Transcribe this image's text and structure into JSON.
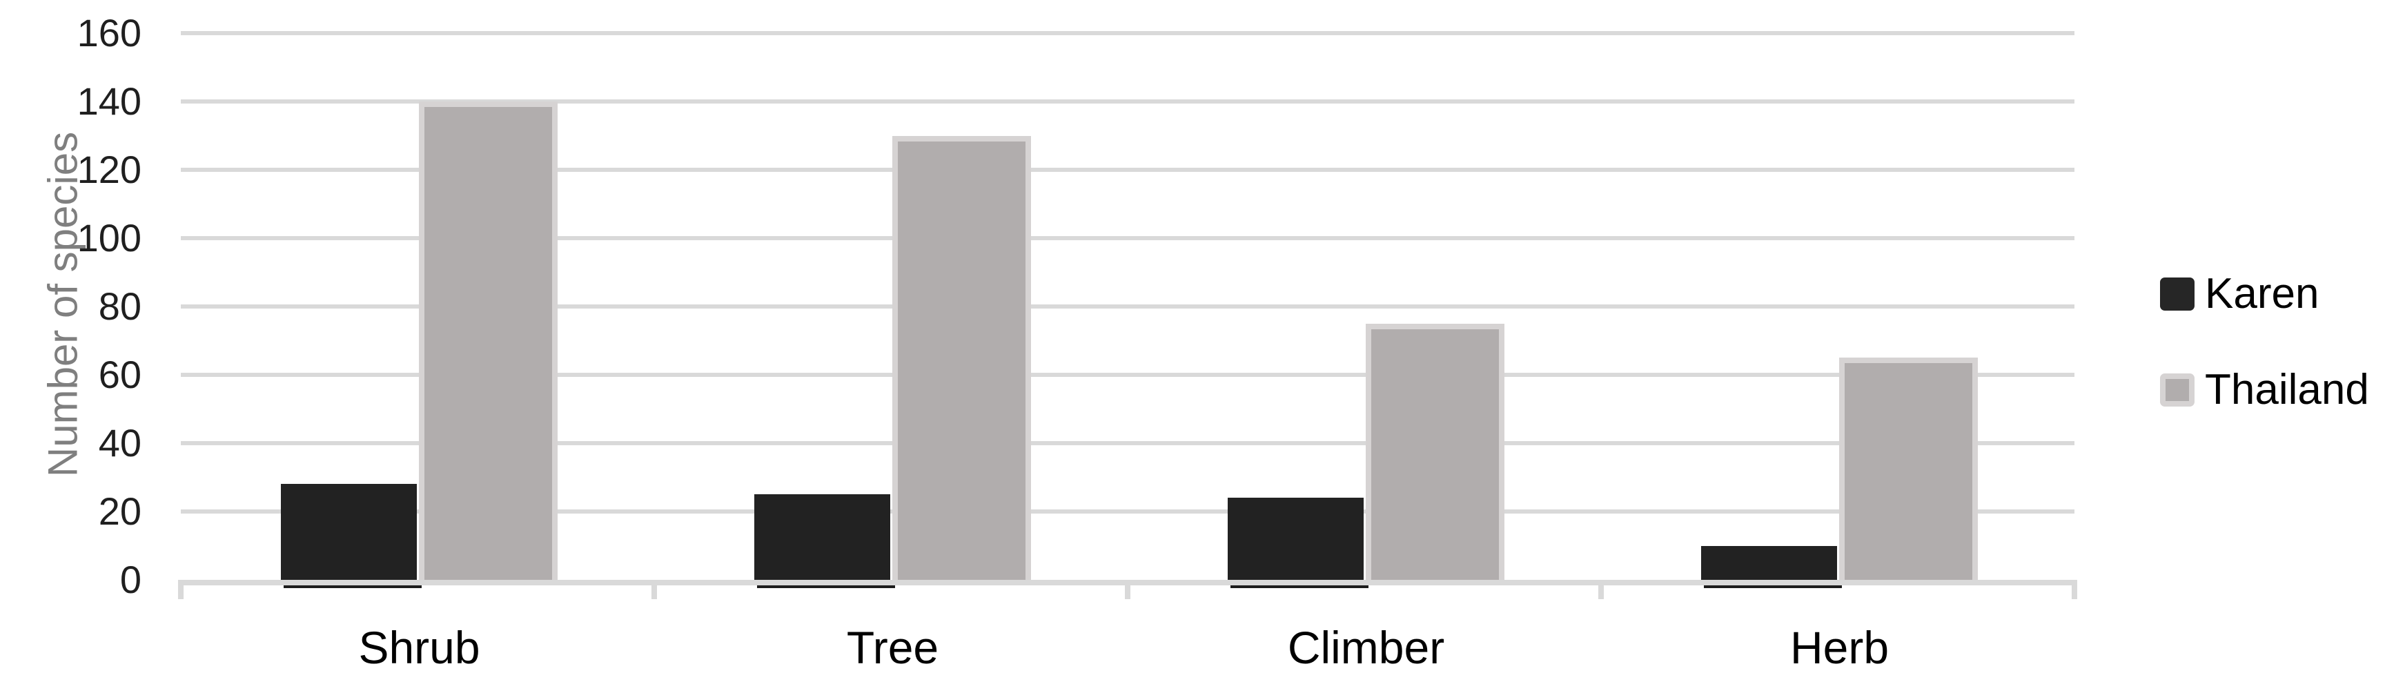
{
  "chart_data": {
    "type": "bar",
    "title": "",
    "categories": [
      "Shrub",
      "Tree",
      "Climber",
      "Herb"
    ],
    "series": [
      {
        "name": "Karen",
        "values": [
          28,
          25,
          24,
          10
        ],
        "color": "#222222"
      },
      {
        "name": "Thailand",
        "values": [
          140,
          130,
          75,
          65
        ],
        "color": "#b1adad",
        "border_color": "#d6d3d3"
      }
    ],
    "xlabel": "",
    "ylabel": "Number of species",
    "ylim": [
      0,
      160
    ],
    "yticks": [
      0,
      20,
      40,
      60,
      80,
      100,
      120,
      140,
      160
    ],
    "grid": "horizontal",
    "legend_position": "right-middle"
  },
  "colors": {
    "background": "#ffffff",
    "gridline": "#d9d9d9",
    "axis_line": "#d9d9d9",
    "axis_tick": "#d9d9d9",
    "tick_label": "#1f1f1f",
    "category_label": "#000000",
    "y_axis_title": "#7f7f7f",
    "legend_text": "#000000",
    "karen_swatch": "#262626",
    "karen_bar": "#222222",
    "karen_bar_underline": "#1c1c1c",
    "thailand_fill": "#b1adad",
    "thailand_border": "#d6d3d3"
  }
}
